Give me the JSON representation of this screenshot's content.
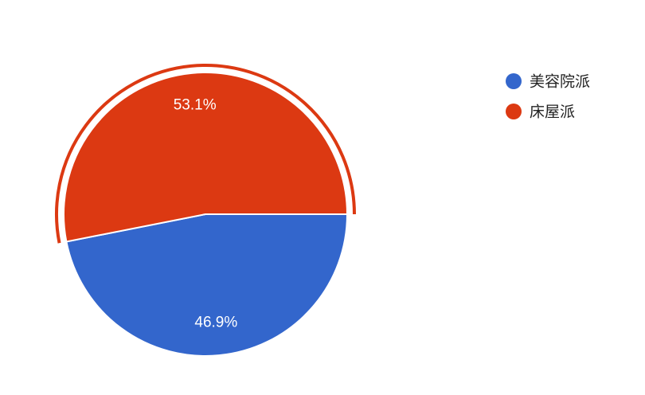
{
  "chart_data": {
    "type": "pie",
    "categories": [
      "美容院派",
      "床屋派"
    ],
    "values": [
      46.9,
      53.1
    ],
    "value_labels": [
      "46.9%",
      "53.1%"
    ],
    "colors": [
      "#3366cc",
      "#dc3912"
    ],
    "legend": "right"
  }
}
